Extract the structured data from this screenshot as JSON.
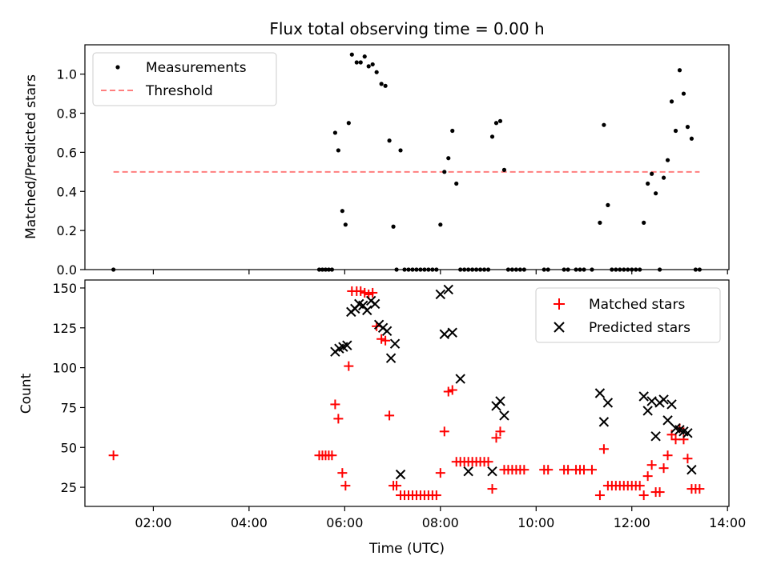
{
  "chart_data": [
    {
      "type": "scatter",
      "title": "Flux total observing time = 0.00 h",
      "xlabel": "",
      "ylabel": "Matched/Predicted stars",
      "xlim_hours": [
        0.57,
        14.03
      ],
      "ylim": [
        0,
        1.15
      ],
      "yticks": [
        0.0,
        0.2,
        0.4,
        0.6,
        0.8,
        1.0
      ],
      "ytick_labels": [
        "0.0",
        "0.2",
        "0.4",
        "0.6",
        "0.8",
        "1.0"
      ],
      "legend": {
        "position": "top-left",
        "measurements_label": "Measurements",
        "threshold_label": "Threshold"
      },
      "threshold": {
        "value": 0.5,
        "x": [
          "01:10",
          "13:25"
        ],
        "color": "#ff7f7f"
      },
      "series": [
        {
          "name": "Measurements",
          "color": "#000000",
          "x": [
            "01:10",
            "05:28",
            "05:32",
            "05:36",
            "05:40",
            "05:44",
            "05:48",
            "05:52",
            "05:57",
            "06:01",
            "06:05",
            "06:09",
            "06:15",
            "06:20",
            "06:25",
            "06:30",
            "06:35",
            "06:40",
            "06:46",
            "06:51",
            "06:56",
            "07:01",
            "07:05",
            "07:10",
            "07:15",
            "07:20",
            "07:25",
            "07:30",
            "07:35",
            "07:40",
            "07:45",
            "07:50",
            "07:55",
            "08:00",
            "08:05",
            "08:10",
            "08:15",
            "08:20",
            "08:25",
            "08:30",
            "08:35",
            "08:40",
            "08:45",
            "08:50",
            "08:55",
            "09:00",
            "09:05",
            "09:10",
            "09:15",
            "09:20",
            "09:25",
            "09:30",
            "09:35",
            "09:40",
            "09:45",
            "10:10",
            "10:15",
            "10:35",
            "10:40",
            "10:50",
            "10:55",
            "11:00",
            "11:10",
            "11:20",
            "11:25",
            "11:30",
            "11:35",
            "11:40",
            "11:45",
            "11:50",
            "11:55",
            "12:00",
            "12:05",
            "12:10",
            "12:15",
            "12:20",
            "12:25",
            "12:30",
            "12:35",
            "12:40",
            "12:45",
            "12:50",
            "12:55",
            "13:00",
            "13:05",
            "13:10",
            "13:15",
            "13:20",
            "13:25"
          ],
          "y": [
            0.0,
            0.0,
            0.0,
            0.0,
            0.0,
            0.0,
            0.7,
            0.61,
            0.3,
            0.23,
            0.75,
            1.1,
            1.06,
            1.06,
            1.09,
            1.04,
            1.05,
            1.01,
            0.95,
            0.94,
            0.66,
            0.22,
            0.0,
            0.61,
            0.0,
            0.0,
            0.0,
            0.0,
            0.0,
            0.0,
            0.0,
            0.0,
            0.0,
            0.23,
            0.5,
            0.57,
            0.71,
            0.44,
            0.0,
            0.0,
            0.0,
            0.0,
            0.0,
            0.0,
            0.0,
            0.0,
            0.68,
            0.75,
            0.76,
            0.51,
            0.0,
            0.0,
            0.0,
            0.0,
            0.0,
            0.0,
            0.0,
            0.0,
            0.0,
            0.0,
            0.0,
            0.0,
            0.0,
            0.24,
            0.74,
            0.33,
            0.0,
            0.0,
            0.0,
            0.0,
            0.0,
            0.0,
            0.0,
            0.0,
            0.24,
            0.44,
            0.49,
            0.39,
            0.0,
            0.47,
            0.56,
            0.86,
            0.71,
            1.02,
            0.9,
            0.73,
            0.67,
            0.0,
            0.0
          ]
        }
      ]
    },
    {
      "type": "scatter",
      "title": "",
      "xlabel": "Time (UTC)",
      "ylabel": "Count",
      "xlim_hours": [
        0.57,
        14.03
      ],
      "xticks": [
        "02:00",
        "04:00",
        "06:00",
        "08:00",
        "10:00",
        "12:00",
        "14:00"
      ],
      "ylim": [
        13,
        155
      ],
      "yticks": [
        25,
        50,
        75,
        100,
        125,
        150
      ],
      "ytick_labels": [
        "25",
        "50",
        "75",
        "100",
        "125",
        "150"
      ],
      "legend": {
        "position": "top-right",
        "matched_label": "Matched stars",
        "predicted_label": "Predicted stars"
      },
      "series": [
        {
          "name": "Matched stars",
          "marker": "+",
          "color": "#ff0000",
          "x": [
            "01:10",
            "05:28",
            "05:32",
            "05:36",
            "05:40",
            "05:44",
            "05:48",
            "05:52",
            "05:57",
            "06:01",
            "06:05",
            "06:09",
            "06:15",
            "06:20",
            "06:25",
            "06:30",
            "06:35",
            "06:40",
            "06:46",
            "06:51",
            "06:56",
            "07:01",
            "07:05",
            "07:10",
            "07:15",
            "07:20",
            "07:25",
            "07:30",
            "07:35",
            "07:40",
            "07:45",
            "07:50",
            "07:55",
            "08:00",
            "08:05",
            "08:10",
            "08:15",
            "08:20",
            "08:25",
            "08:30",
            "08:35",
            "08:40",
            "08:45",
            "08:50",
            "08:55",
            "09:00",
            "09:05",
            "09:10",
            "09:15",
            "09:20",
            "09:25",
            "09:30",
            "09:35",
            "09:40",
            "09:45",
            "10:10",
            "10:15",
            "10:35",
            "10:40",
            "10:50",
            "10:55",
            "11:00",
            "11:10",
            "11:20",
            "11:25",
            "11:30",
            "11:35",
            "11:40",
            "11:45",
            "11:50",
            "11:55",
            "12:00",
            "12:05",
            "12:10",
            "12:15",
            "12:20",
            "12:25",
            "12:30",
            "12:35",
            "12:40",
            "12:45",
            "12:50",
            "12:55",
            "13:00",
            "13:05",
            "13:10",
            "13:15",
            "13:20",
            "13:25"
          ],
          "y": [
            45,
            45,
            45,
            45,
            45,
            45,
            77,
            68,
            34,
            26,
            101,
            148,
            148,
            148,
            147,
            146,
            147,
            126,
            118,
            117,
            70,
            26,
            26,
            20,
            20,
            20,
            20,
            20,
            20,
            20,
            20,
            20,
            20,
            34,
            60,
            85,
            86,
            41,
            41,
            41,
            41,
            41,
            41,
            41,
            41,
            41,
            24,
            56,
            60,
            36,
            36,
            36,
            36,
            36,
            36,
            36,
            36,
            36,
            36,
            36,
            36,
            36,
            36,
            20,
            49,
            26,
            26,
            26,
            26,
            26,
            26,
            26,
            26,
            26,
            20,
            32,
            39,
            22,
            22,
            37,
            45,
            58,
            55,
            62,
            55,
            43,
            24,
            24,
            24
          ]
        },
        {
          "name": "Predicted stars",
          "marker": "x",
          "color": "#000000",
          "x": [
            "05:48",
            "05:53",
            "05:58",
            "06:03",
            "06:08",
            "06:13",
            "06:18",
            "06:23",
            "06:28",
            "06:33",
            "06:38",
            "06:43",
            "06:48",
            "06:53",
            "06:58",
            "07:03",
            "07:10",
            "08:00",
            "08:05",
            "08:10",
            "08:15",
            "08:25",
            "08:35",
            "09:05",
            "09:10",
            "09:15",
            "09:20",
            "11:20",
            "11:25",
            "11:30",
            "12:15",
            "12:20",
            "12:25",
            "12:30",
            "12:35",
            "12:40",
            "12:45",
            "12:50",
            "12:55",
            "13:00",
            "13:05",
            "13:10",
            "13:15"
          ],
          "y": [
            110,
            112,
            113,
            114,
            135,
            137,
            140,
            139,
            136,
            142,
            140,
            127,
            125,
            123,
            106,
            115,
            33,
            146,
            121,
            149,
            122,
            93,
            35,
            35,
            76,
            79,
            70,
            84,
            66,
            78,
            82,
            73,
            79,
            57,
            78,
            80,
            67,
            77,
            62,
            61,
            60,
            59,
            36
          ]
        }
      ]
    }
  ]
}
